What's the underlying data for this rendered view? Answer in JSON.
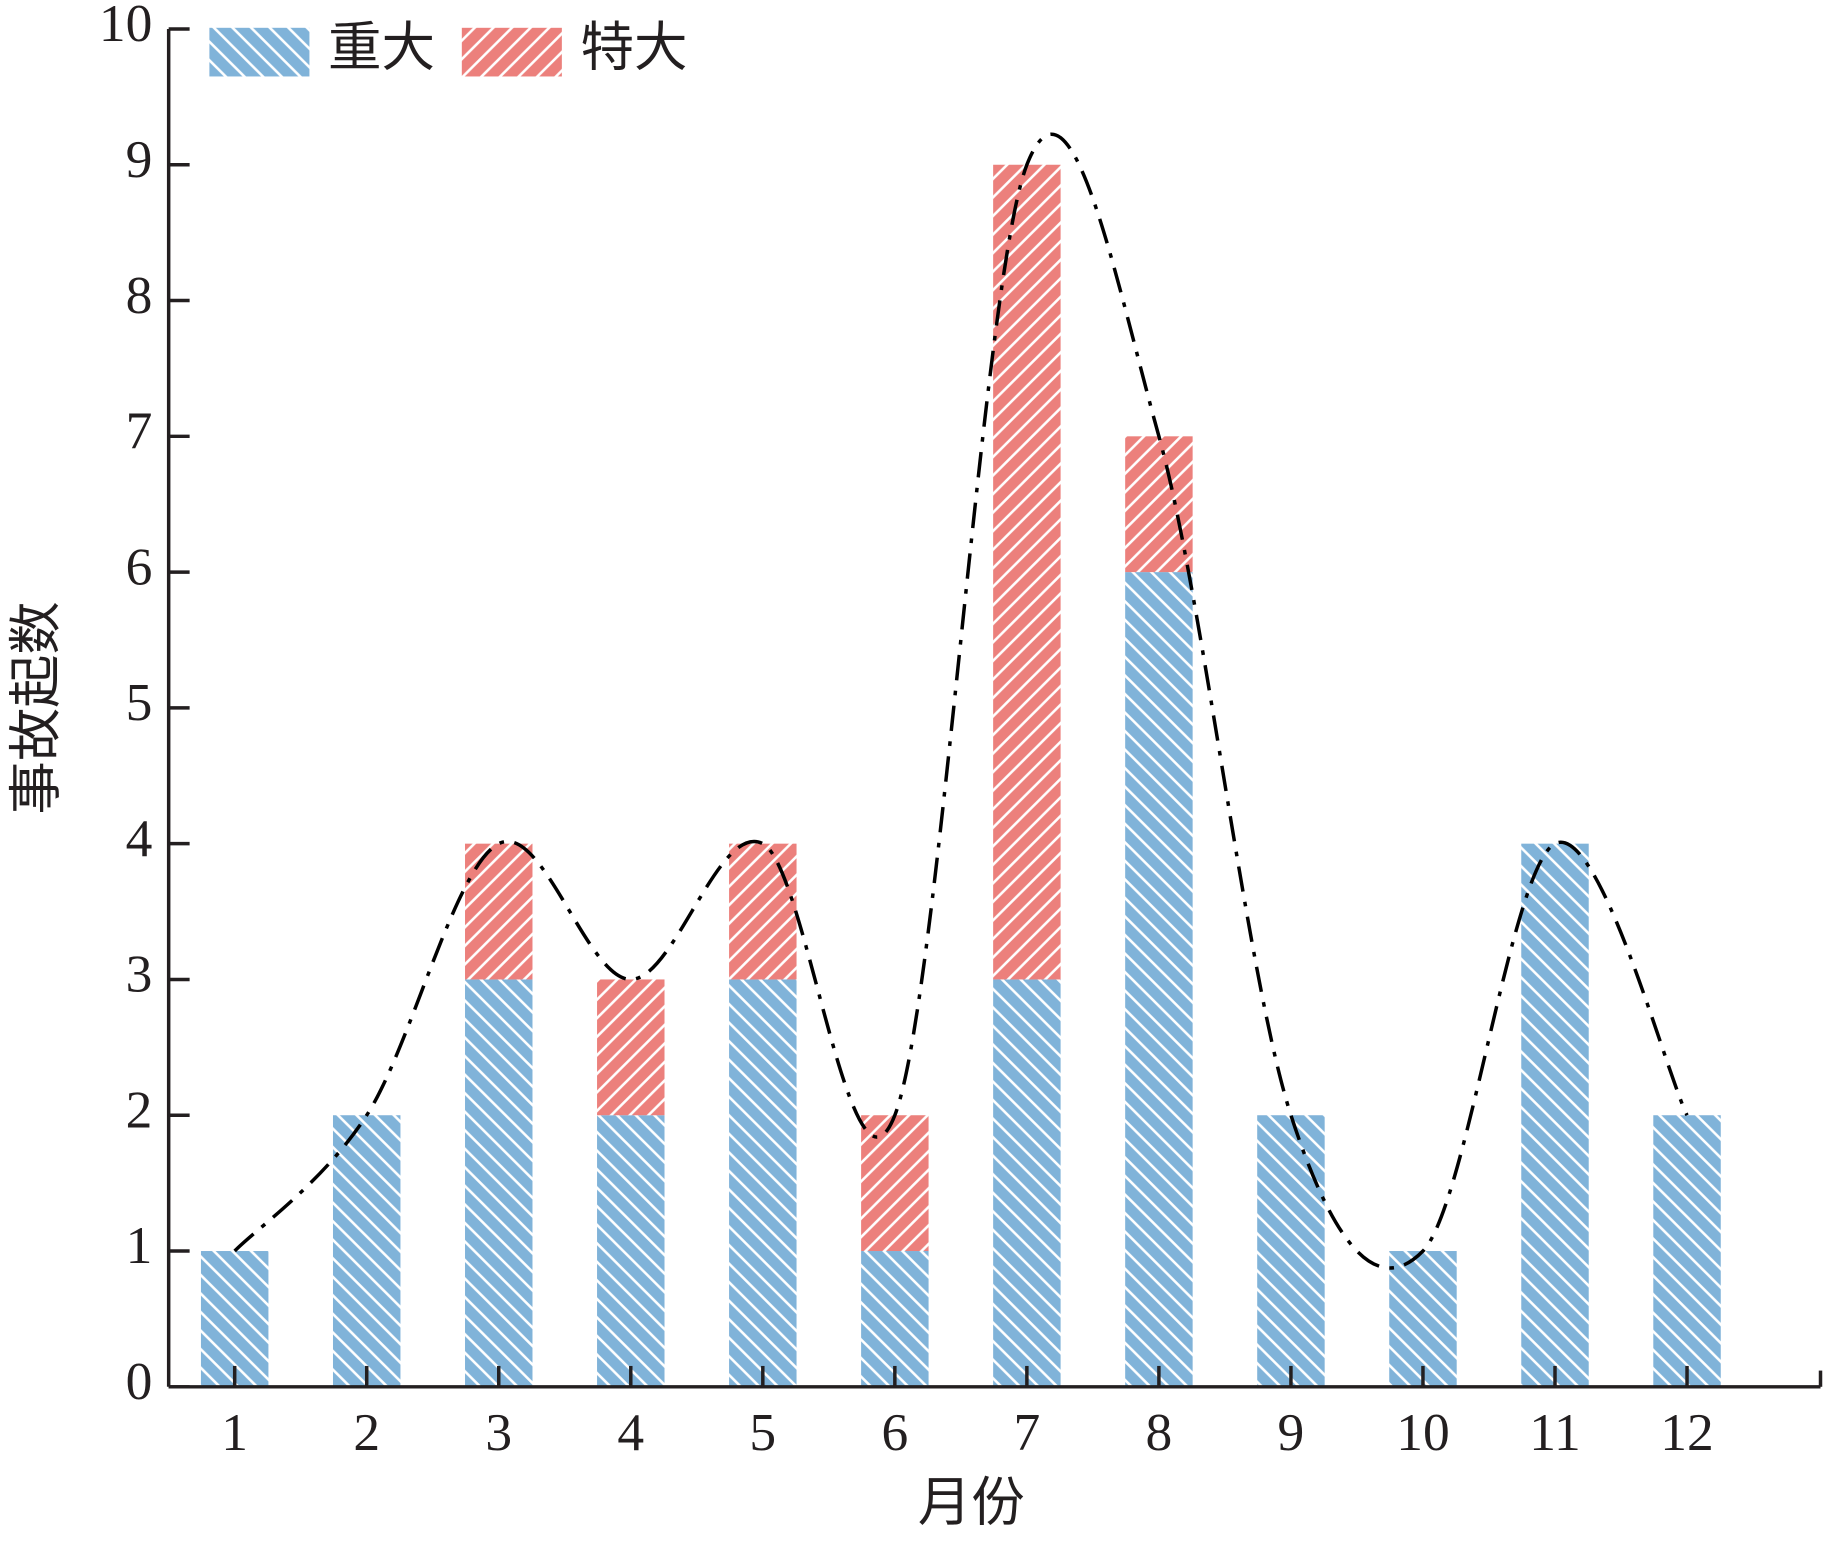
{
  "chart_data": {
    "type": "stacked-bar",
    "x_label": "月份",
    "y_label": "事故起数",
    "categories": [
      "1",
      "2",
      "3",
      "4",
      "5",
      "6",
      "7",
      "8",
      "9",
      "10",
      "11",
      "12"
    ],
    "series": [
      {
        "name": "重大",
        "color": "#80b3d9",
        "values": [
          1,
          2,
          3,
          2,
          3,
          1,
          3,
          6,
          2,
          1,
          4,
          2
        ]
      },
      {
        "name": "特大",
        "color": "#ec807c",
        "values": [
          0,
          0,
          1,
          1,
          1,
          1,
          6,
          1,
          0,
          0,
          0,
          0
        ]
      }
    ],
    "ylim": [
      0,
      10
    ],
    "yticks": [
      0,
      1,
      2,
      3,
      4,
      5,
      6,
      7,
      8,
      9,
      10
    ],
    "trend_line": true,
    "legend": "top-left"
  }
}
